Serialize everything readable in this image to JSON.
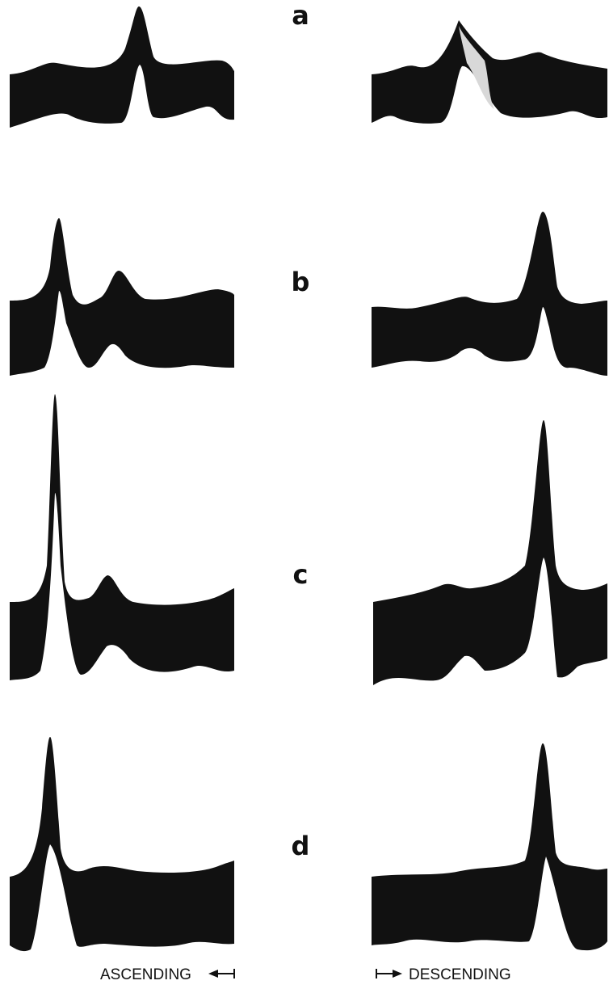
{
  "panels": [
    {
      "label": "a"
    },
    {
      "label": "b"
    },
    {
      "label": "c"
    },
    {
      "label": "d"
    }
  ],
  "footer": {
    "left": "ASCENDING",
    "right": "DESCENDING"
  }
}
